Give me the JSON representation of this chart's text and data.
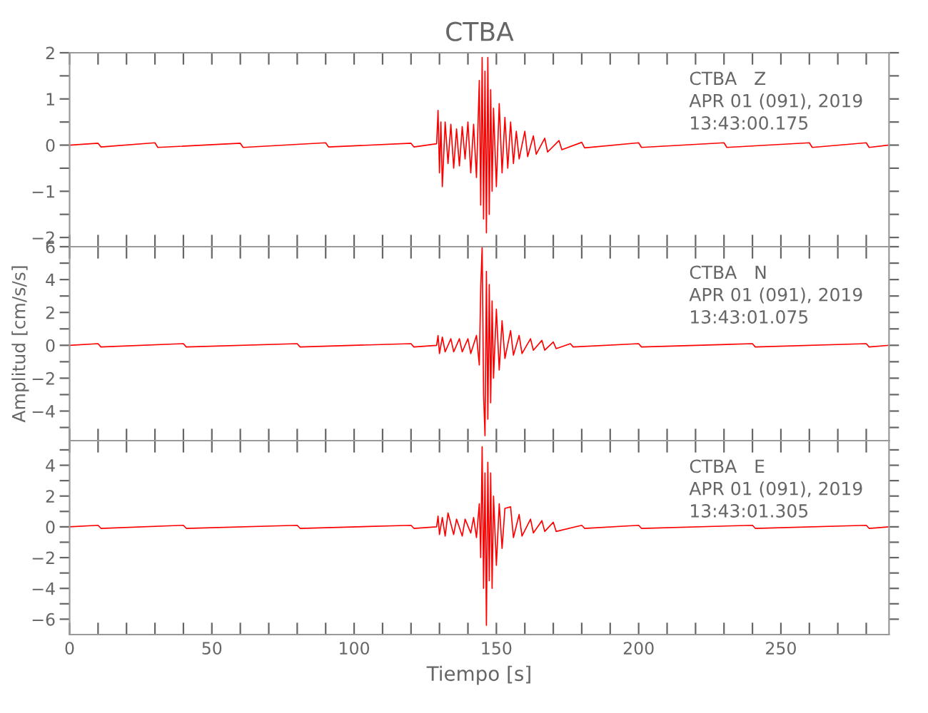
{
  "chart_data": [
    {
      "type": "line",
      "title": "CTBA",
      "xlim": [
        0,
        288
      ],
      "ylim": [
        -2.2,
        2
      ],
      "tick_labels": "y",
      "grid": false,
      "legend": false,
      "marker": "none",
      "line_style": "solid",
      "xticks": [
        0,
        {
          "value": 10,
          "label": null
        },
        {
          "value": 20,
          "label": null
        },
        {
          "value": 30,
          "label": null
        },
        {
          "value": 40,
          "label": null
        },
        50,
        {
          "value": 60,
          "label": null
        },
        {
          "value": 70,
          "label": null
        },
        {
          "value": 80,
          "label": null
        },
        {
          "value": 90,
          "label": null
        },
        100,
        {
          "value": 110,
          "label": null
        },
        {
          "value": 120,
          "label": null
        },
        {
          "value": 130,
          "label": null
        },
        {
          "value": 140,
          "label": null
        },
        150,
        {
          "value": 160,
          "label": null
        },
        {
          "value": 170,
          "label": null
        },
        {
          "value": 180,
          "label": null
        },
        {
          "value": 190,
          "label": null
        },
        200,
        {
          "value": 210,
          "label": null
        },
        {
          "value": 220,
          "label": null
        },
        {
          "value": 230,
          "label": null
        },
        {
          "value": 240,
          "label": null
        },
        250,
        {
          "value": 260,
          "label": null
        },
        {
          "value": 270,
          "label": null
        },
        {
          "value": 280,
          "label": null
        }
      ],
      "yticks": [
        -2,
        {
          "value": -1.5,
          "label": null
        },
        -1,
        {
          "value": -0.5,
          "label": null
        },
        0,
        {
          "value": 0.5,
          "label": null
        },
        1,
        {
          "value": 1.5,
          "label": null
        },
        2
      ],
      "annotations": [
        "CTBA   Z",
        "APR 01 (091), 2019",
        "13:43:00.175"
      ],
      "series": [
        {
          "color": "#ff0000",
          "x": [
            0,
            10,
            11,
            30,
            31,
            60,
            61,
            90,
            91,
            120,
            121,
            129,
            129.5,
            130,
            130.5,
            131,
            132,
            133,
            134,
            135,
            136,
            137,
            138,
            139,
            140,
            141,
            142,
            143,
            144,
            144.5,
            145,
            145.5,
            146,
            146.5,
            147,
            147.5,
            148,
            148.5,
            149,
            150,
            151,
            152,
            153,
            154,
            155,
            156,
            157,
            158,
            160,
            161,
            163,
            164,
            167,
            168,
            172,
            173,
            180,
            181,
            200,
            201,
            230,
            231,
            260,
            261,
            280,
            281,
            288
          ],
          "values": [
            0,
            0.04,
            -0.04,
            0.05,
            -0.05,
            0.04,
            -0.05,
            0.05,
            -0.04,
            0.04,
            -0.04,
            0.03,
            0.75,
            -0.6,
            0.5,
            -0.9,
            0.5,
            -0.4,
            0.45,
            -0.5,
            0.35,
            -0.45,
            0.4,
            -0.3,
            0.5,
            -0.6,
            0.45,
            -0.7,
            1.4,
            -1.3,
            1.9,
            -1.6,
            1.6,
            -1.9,
            1.9,
            -1.5,
            1.2,
            -1.0,
            0.8,
            -0.9,
            0.9,
            -0.6,
            0.6,
            -0.5,
            0.5,
            -0.4,
            0.3,
            -0.3,
            0.3,
            -0.25,
            0.2,
            -0.2,
            0.15,
            -0.15,
            0.1,
            -0.1,
            0.06,
            -0.06,
            0.05,
            -0.05,
            0.05,
            -0.05,
            0.05,
            -0.05,
            0.05,
            -0.05,
            0
          ]
        }
      ]
    },
    {
      "type": "line",
      "ylabel": "Amplitud [cm/s/s]",
      "xlim": [
        0,
        288
      ],
      "ylim": [
        -5.8,
        6
      ],
      "tick_labels": "y",
      "grid": false,
      "legend": false,
      "marker": "none",
      "line_style": "solid",
      "xticks": [
        0,
        {
          "value": 10,
          "label": null
        },
        {
          "value": 20,
          "label": null
        },
        {
          "value": 30,
          "label": null
        },
        {
          "value": 40,
          "label": null
        },
        50,
        {
          "value": 60,
          "label": null
        },
        {
          "value": 70,
          "label": null
        },
        {
          "value": 80,
          "label": null
        },
        {
          "value": 90,
          "label": null
        },
        100,
        {
          "value": 110,
          "label": null
        },
        {
          "value": 120,
          "label": null
        },
        {
          "value": 130,
          "label": null
        },
        {
          "value": 140,
          "label": null
        },
        150,
        {
          "value": 160,
          "label": null
        },
        {
          "value": 170,
          "label": null
        },
        {
          "value": 180,
          "label": null
        },
        {
          "value": 190,
          "label": null
        },
        200,
        {
          "value": 210,
          "label": null
        },
        {
          "value": 220,
          "label": null
        },
        {
          "value": 230,
          "label": null
        },
        {
          "value": 240,
          "label": null
        },
        250,
        {
          "value": 260,
          "label": null
        },
        {
          "value": 270,
          "label": null
        },
        {
          "value": 280,
          "label": null
        }
      ],
      "yticks": [
        {
          "value": -5,
          "label": null
        },
        -4,
        {
          "value": -3,
          "label": null
        },
        -2,
        {
          "value": -1,
          "label": null
        },
        0,
        {
          "value": 1,
          "label": null
        },
        2,
        {
          "value": 3,
          "label": null
        },
        4,
        {
          "value": 5,
          "label": null
        },
        6
      ],
      "annotations": [
        "CTBA   N",
        "APR 01 (091), 2019",
        "13:43:01.075"
      ],
      "series": [
        {
          "color": "#ff0000",
          "x": [
            0,
            10,
            11,
            40,
            41,
            80,
            81,
            120,
            121,
            129,
            129.5,
            130,
            131,
            132,
            134,
            135,
            137,
            138,
            140,
            141,
            143,
            144,
            144.5,
            145,
            145.5,
            146,
            146.5,
            147,
            147.5,
            148,
            148.5,
            149,
            150,
            151,
            152,
            153,
            155,
            156,
            158,
            159,
            162,
            163,
            166,
            167,
            170,
            171,
            176,
            177,
            200,
            201,
            240,
            241,
            280,
            281,
            288
          ],
          "values": [
            0,
            0.1,
            -0.1,
            0.1,
            -0.1,
            0.1,
            -0.1,
            0.1,
            -0.1,
            0,
            0.6,
            -0.5,
            0.5,
            -0.4,
            0.4,
            -0.4,
            0.4,
            -0.4,
            0.4,
            -0.5,
            0.6,
            -1.2,
            3.5,
            6,
            -3,
            -5.5,
            4.5,
            -4.5,
            3.7,
            -3.5,
            2.7,
            -2,
            2.2,
            -1.5,
            1.5,
            -0.8,
            0.9,
            -0.6,
            0.6,
            -0.5,
            0.4,
            -0.3,
            0.3,
            -0.3,
            0.2,
            -0.2,
            0.1,
            -0.1,
            0.1,
            -0.1,
            0.1,
            -0.1,
            0.1,
            -0.1,
            0
          ]
        }
      ]
    },
    {
      "type": "line",
      "xlabel": "Tiempo [s]",
      "xlim": [
        0,
        288
      ],
      "ylim": [
        -7,
        5.6
      ],
      "grid": false,
      "legend": false,
      "marker": "none",
      "line_style": "solid",
      "xticks": [
        0,
        {
          "value": 10,
          "label": null
        },
        {
          "value": 20,
          "label": null
        },
        {
          "value": 30,
          "label": null
        },
        {
          "value": 40,
          "label": null
        },
        50,
        {
          "value": 60,
          "label": null
        },
        {
          "value": 70,
          "label": null
        },
        {
          "value": 80,
          "label": null
        },
        {
          "value": 90,
          "label": null
        },
        100,
        {
          "value": 110,
          "label": null
        },
        {
          "value": 120,
          "label": null
        },
        {
          "value": 130,
          "label": null
        },
        {
          "value": 140,
          "label": null
        },
        150,
        {
          "value": 160,
          "label": null
        },
        {
          "value": 170,
          "label": null
        },
        {
          "value": 180,
          "label": null
        },
        {
          "value": 190,
          "label": null
        },
        200,
        {
          "value": 210,
          "label": null
        },
        {
          "value": 220,
          "label": null
        },
        {
          "value": 230,
          "label": null
        },
        {
          "value": 240,
          "label": null
        },
        250,
        {
          "value": 260,
          "label": null
        },
        {
          "value": 270,
          "label": null
        },
        {
          "value": 280,
          "label": null
        }
      ],
      "yticks": [
        -6,
        {
          "value": -5,
          "label": null
        },
        -4,
        {
          "value": -3,
          "label": null
        },
        -2,
        {
          "value": -1,
          "label": null
        },
        0,
        {
          "value": 1,
          "label": null
        },
        2,
        {
          "value": 3,
          "label": null
        },
        4,
        {
          "value": 5,
          "label": null
        }
      ],
      "annotations": [
        "CTBA   E",
        "APR 01 (091), 2019",
        "13:43:01.305"
      ],
      "series": [
        {
          "color": "#ff0000",
          "x": [
            0,
            10,
            11,
            40,
            41,
            80,
            81,
            120,
            121,
            129,
            129.5,
            130,
            131,
            132,
            133,
            135,
            136,
            138,
            139,
            141,
            142,
            143,
            144,
            144.5,
            145,
            145.5,
            146,
            146.5,
            147,
            147.5,
            148,
            148.5,
            149,
            150,
            151,
            152,
            153,
            155,
            156,
            158,
            159,
            162,
            163,
            166,
            167,
            170,
            171,
            180,
            181,
            200,
            201,
            240,
            241,
            280,
            281,
            288
          ],
          "values": [
            0,
            0.1,
            -0.1,
            0.1,
            -0.1,
            0.1,
            -0.1,
            0.1,
            -0.1,
            0,
            0.7,
            -0.5,
            0.6,
            -0.6,
            0.9,
            -0.5,
            0.5,
            -0.6,
            0.5,
            -0.4,
            0.6,
            -0.7,
            1.5,
            -2,
            5.2,
            -4,
            3.5,
            -6.4,
            4.2,
            -3.5,
            3.5,
            -4,
            2,
            -2.5,
            1.5,
            -1.4,
            1.2,
            1.3,
            -0.7,
            0.8,
            -0.6,
            0.5,
            -0.4,
            0.4,
            -0.3,
            0.3,
            -0.3,
            0.1,
            -0.1,
            0.1,
            -0.1,
            0.1,
            -0.1,
            0.1,
            -0.1,
            0
          ]
        }
      ]
    }
  ]
}
